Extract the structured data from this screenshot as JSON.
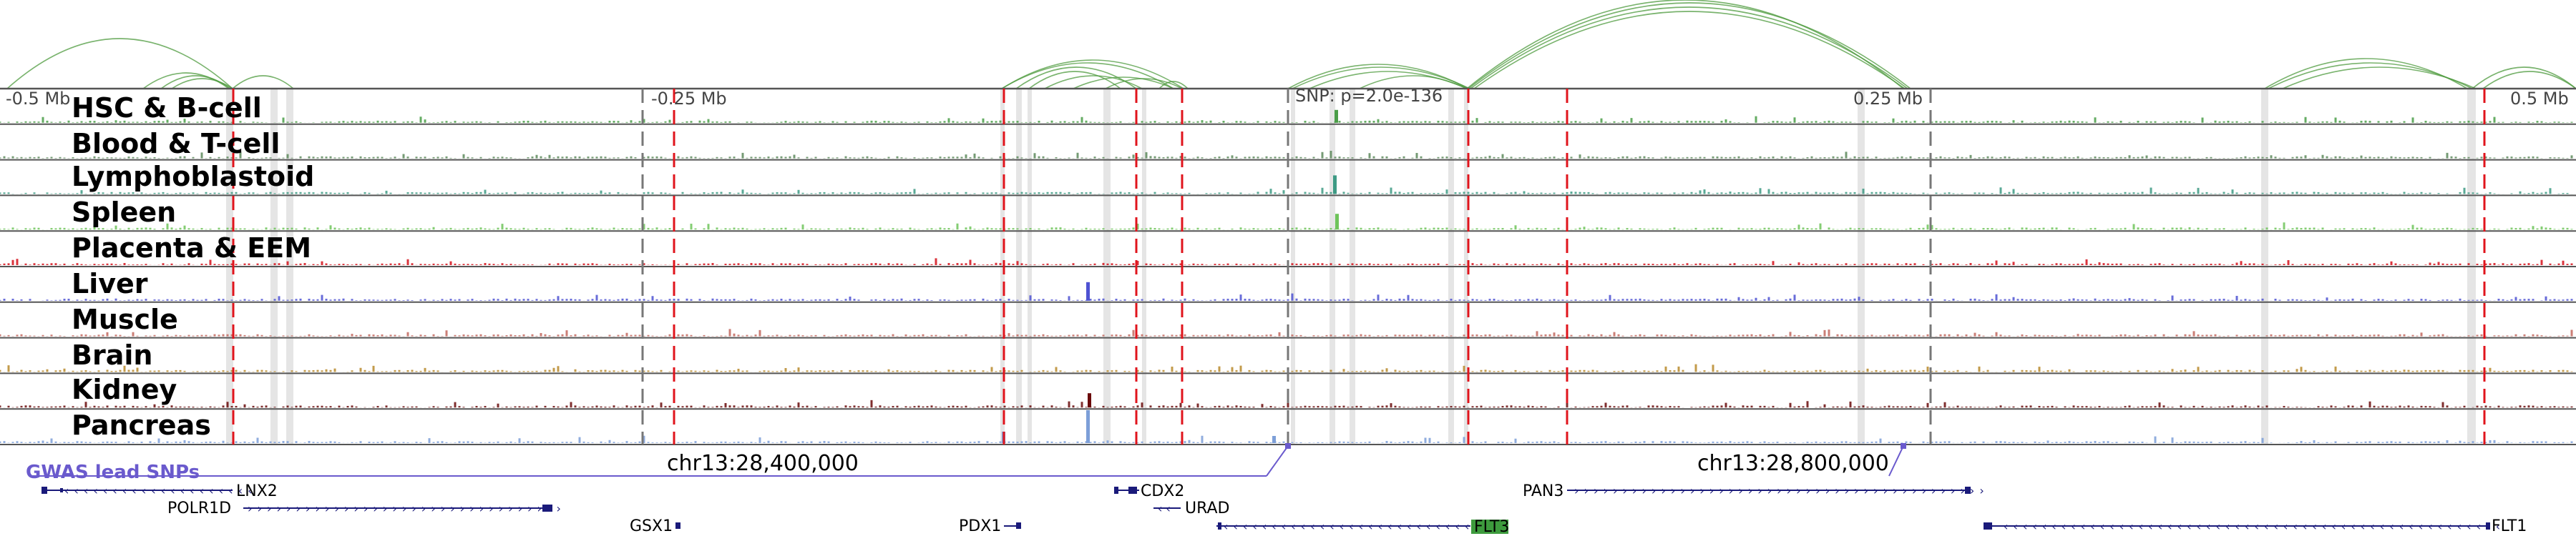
{
  "region": {
    "axis_labels": [
      "-0.5 Mb",
      "-0.25 Mb",
      "SNP: p=2.0e-136",
      "0.25 Mb",
      "0.5 Mb"
    ],
    "coordinate_labels": [
      "chr13:28,400,000",
      "chr13:28,800,000"
    ]
  },
  "tracks": [
    {
      "label": "HSC & B-cell",
      "color": "#4a9d48"
    },
    {
      "label": "Blood & T-cell",
      "color": "#5d8a5c"
    },
    {
      "label": "Lymphoblastoid",
      "color": "#3d9a84"
    },
    {
      "label": "Spleen",
      "color": "#6ec45a"
    },
    {
      "label": "Placenta & EEM",
      "color": "#d3101a"
    },
    {
      "label": "Liver",
      "color": "#4e52d2"
    },
    {
      "label": "Muscle",
      "color": "#c2675e"
    },
    {
      "label": "Brain",
      "color": "#b88a2c"
    },
    {
      "label": "Kidney",
      "color": "#6a0a0a"
    },
    {
      "label": "Pancreas",
      "color": "#7d9fd8"
    }
  ],
  "gwas": {
    "label": "GWAS lead SNPs",
    "color": "#6a5acd"
  },
  "genes": [
    {
      "name": "LNX2",
      "highlight": false
    },
    {
      "name": "POLR1D",
      "highlight": false
    },
    {
      "name": "GSX1",
      "highlight": false
    },
    {
      "name": "PDX1",
      "highlight": false
    },
    {
      "name": "CDX2",
      "highlight": false
    },
    {
      "name": "URAD",
      "highlight": false
    },
    {
      "name": "PAN3",
      "highlight": false
    },
    {
      "name": "FLT3",
      "highlight": true
    },
    {
      "name": "FLT1",
      "highlight": false
    }
  ],
  "colors": {
    "loop": "#4c9a3c",
    "red_marker": "#e0141c",
    "gene": "#1a1a7a",
    "flt3": "#3d9b3d"
  }
}
